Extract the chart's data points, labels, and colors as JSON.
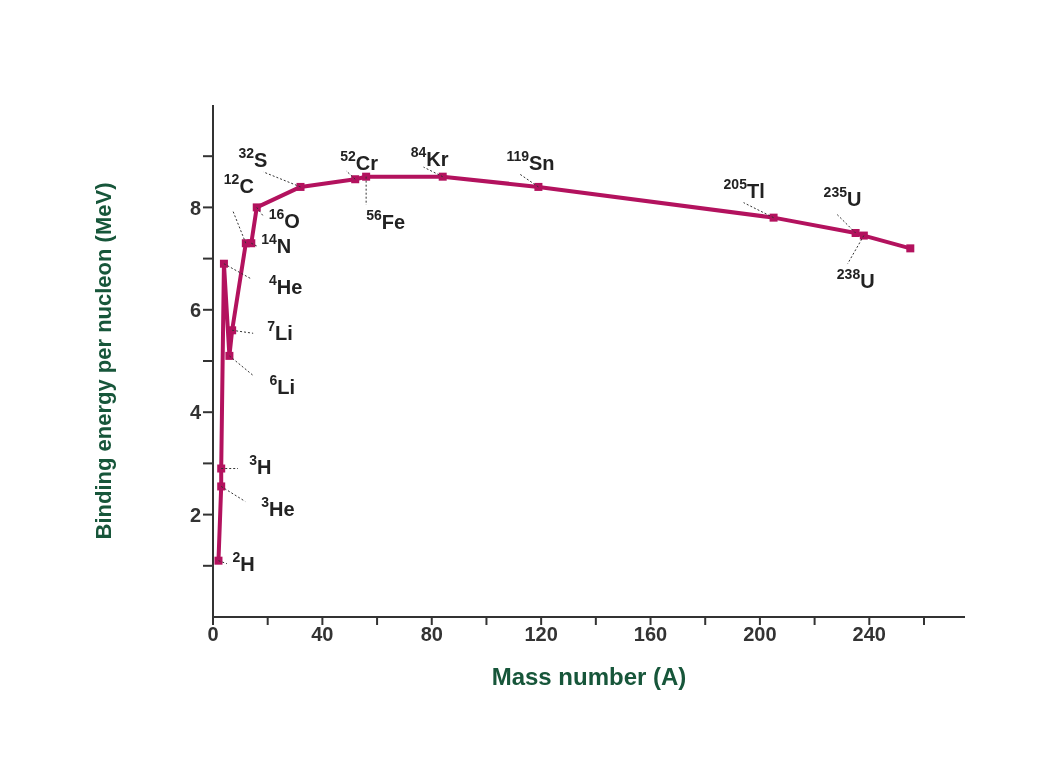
{
  "chart_data": {
    "type": "line",
    "xlabel": "Mass number (A)",
    "ylabel": "Binding energy per nucleon (MeV)",
    "x": [
      2,
      3,
      3,
      4,
      6,
      7,
      12,
      14,
      16,
      32,
      52,
      56,
      84,
      119,
      205,
      235,
      238,
      255
    ],
    "series": [
      {
        "color": "#b3125e",
        "values": [
          1.1,
          2.55,
          2.9,
          6.9,
          5.1,
          5.6,
          7.3,
          7.3,
          8.0,
          8.4,
          8.55,
          8.6,
          8.6,
          8.4,
          7.8,
          7.5,
          7.45,
          7.2
        ]
      }
    ],
    "marker": "square",
    "line_style": "solid",
    "xlim": [
      0,
      275
    ],
    "xticks": [
      0,
      {
        "value": 20,
        "label": null
      },
      40,
      {
        "value": 60,
        "label": null
      },
      80,
      {
        "value": 100,
        "label": null
      },
      120,
      {
        "value": 140,
        "label": null
      },
      160,
      {
        "value": 180,
        "label": null
      },
      200,
      {
        "value": 220,
        "label": null
      },
      240,
      {
        "value": 260,
        "label": null
      }
    ],
    "ylim": [
      0,
      10
    ],
    "yticks": [
      {
        "value": 1,
        "label": null
      },
      2,
      {
        "value": 3,
        "label": null
      },
      4,
      {
        "value": 5,
        "label": null
      },
      6,
      {
        "value": 7,
        "label": null
      },
      8,
      {
        "value": 9,
        "label": null
      }
    ],
    "grid": false,
    "annotations": [
      {
        "text": "$^{2}$H",
        "x": 2,
        "y": 1.1
      },
      {
        "text": "$^{3}$He",
        "x": 3,
        "y": 2.55
      },
      {
        "text": "$^{3}$H",
        "x": 3,
        "y": 2.9
      },
      {
        "text": "$^{4}$He",
        "x": 4,
        "y": 6.9
      },
      {
        "text": "$^{6}$Li",
        "x": 6,
        "y": 5.1
      },
      {
        "text": "$^{7}$Li",
        "x": 7,
        "y": 5.6
      },
      {
        "text": "$^{12}$C",
        "x": 12,
        "y": 7.3
      },
      {
        "text": "$^{14}$N",
        "x": 14,
        "y": 7.3
      },
      {
        "text": "$^{16}$O",
        "x": 16,
        "y": 8.0
      },
      {
        "text": "$^{32}$S",
        "x": 32,
        "y": 8.4
      },
      {
        "text": "$^{52}$Cr",
        "x": 52,
        "y": 8.55
      },
      {
        "text": "$^{56}$Fe",
        "x": 56,
        "y": 8.6
      },
      {
        "text": "$^{84}$Kr",
        "x": 84,
        "y": 8.6
      },
      {
        "text": "$^{119}$Sn",
        "x": 119,
        "y": 8.4
      },
      {
        "text": "$^{205}$Tl",
        "x": 205,
        "y": 7.8
      },
      {
        "text": "$^{235}$U",
        "x": 235,
        "y": 7.5
      },
      {
        "text": "$^{238}$U",
        "x": 238,
        "y": 7.45
      }
    ]
  }
}
